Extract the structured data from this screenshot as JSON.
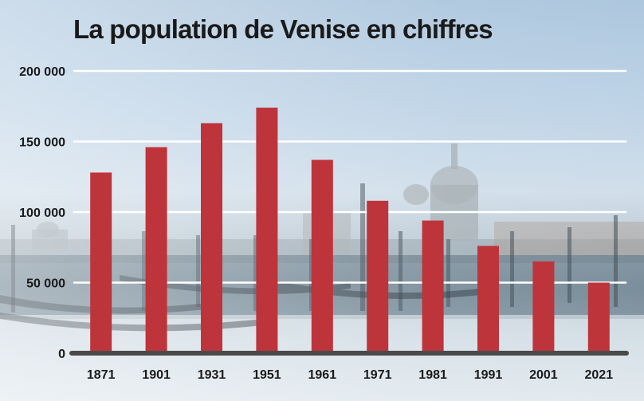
{
  "chart_data": {
    "type": "bar",
    "title": "La population de Venise en chiffres",
    "categories": [
      "1871",
      "1901",
      "1931",
      "1951",
      "1961",
      "1971",
      "1981",
      "1991",
      "2001",
      "2021"
    ],
    "values": [
      128000,
      146000,
      163000,
      174000,
      137000,
      108000,
      94000,
      76000,
      65000,
      50000
    ],
    "ylim": [
      0,
      200000
    ],
    "yticks": [
      0,
      50000,
      100000,
      150000,
      200000
    ],
    "ytick_labels": [
      "0",
      "50 000",
      "100 000",
      "150 000",
      "200 000"
    ],
    "xlabel": "",
    "ylabel": "",
    "grid": true,
    "colors": {
      "bar": "#be343b",
      "grid": "#ffffff",
      "axis": "#4a4a4a"
    }
  }
}
